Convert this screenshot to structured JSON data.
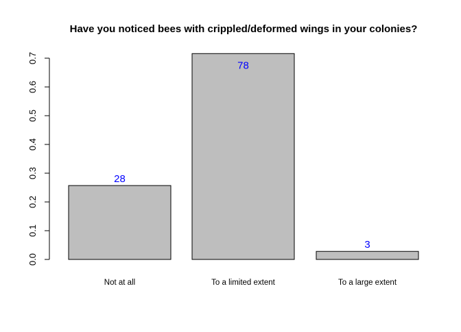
{
  "chart_data": {
    "type": "bar",
    "title": "Have you noticed bees with crippled/deformed wings in your colonies?",
    "xlabel": "",
    "ylabel": "",
    "categories": [
      "Not at all",
      "To a limited extent",
      "To a large extent"
    ],
    "values": [
      0.257,
      0.716,
      0.028
    ],
    "data_labels": [
      "28",
      "78",
      "3"
    ],
    "ylim": [
      0,
      0.7
    ],
    "yticks": [
      "0.0",
      "0.1",
      "0.2",
      "0.3",
      "0.4",
      "0.5",
      "0.6",
      "0.7"
    ],
    "grid": false,
    "legend": "none",
    "colors": {
      "bar_fill": "#bebebe",
      "bar_stroke": "#000000",
      "data_label": "#0000ff",
      "axis": "#000000"
    }
  }
}
